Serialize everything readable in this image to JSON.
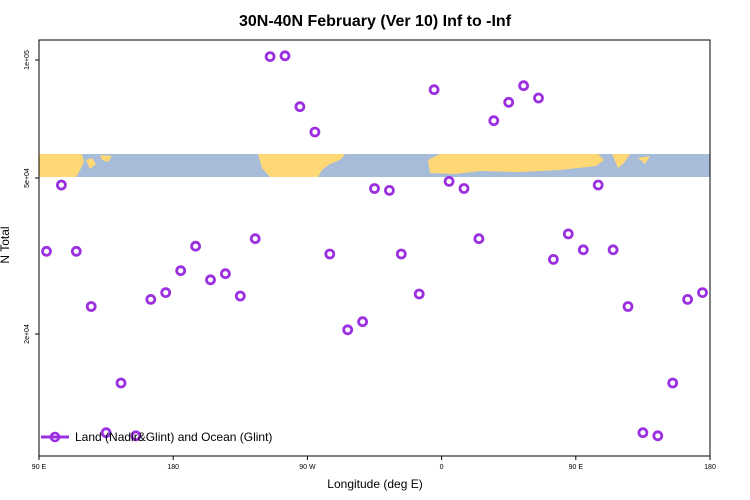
{
  "chart_data": {
    "type": "scatter",
    "title": "30N-40N February (Ver 10)   Inf to -Inf",
    "xlabel": "Longitude (deg E)",
    "ylabel": "N Total",
    "x_ticks": [
      {
        "value": 90,
        "label": "90 E"
      },
      {
        "value": 180,
        "label": "180"
      },
      {
        "value": 270,
        "label": "90 W"
      },
      {
        "value": 360,
        "label": "0"
      },
      {
        "value": 450,
        "label": "90 E"
      },
      {
        "value": 540,
        "label": "180"
      }
    ],
    "xlim": [
      90,
      540
    ],
    "y_scale": "log",
    "ylim": [
      10000,
      110000
    ],
    "y_ticks": [
      {
        "value": 20000,
        "label": "2e+04"
      },
      {
        "value": 50000,
        "label": "5e+04"
      },
      {
        "value": 100000,
        "label": "1e+05"
      }
    ],
    "grid": false,
    "legend_position": "bottom-left",
    "map_strip": {
      "colors": {
        "ocean": "#a7bcd9",
        "land": "#ffd876"
      }
    },
    "series": [
      {
        "name": "Land (Nadir&Glint) and Ocean (Glint)",
        "color": "#9b30e0",
        "marker": "hollow-circle",
        "points": [
          [
            95,
            32500
          ],
          [
            105,
            48000
          ],
          [
            115,
            32500
          ],
          [
            125,
            23500
          ],
          [
            135,
            11200
          ],
          [
            145,
            15000
          ],
          [
            155,
            11000
          ],
          [
            165,
            24500
          ],
          [
            175,
            25500
          ],
          [
            185,
            29000
          ],
          [
            195,
            33500
          ],
          [
            205,
            27500
          ],
          [
            215,
            28500
          ],
          [
            225,
            25000
          ],
          [
            235,
            35000
          ],
          [
            245,
            102000
          ],
          [
            255,
            102500
          ],
          [
            265,
            76000
          ],
          [
            275,
            65500
          ],
          [
            285,
            32000
          ],
          [
            297,
            20500
          ],
          [
            307,
            21500
          ],
          [
            315,
            47000
          ],
          [
            325,
            46500
          ],
          [
            333,
            32000
          ],
          [
            345,
            25300
          ],
          [
            355,
            84000
          ],
          [
            365,
            49000
          ],
          [
            375,
            47000
          ],
          [
            385,
            35000
          ],
          [
            395,
            70000
          ],
          [
            405,
            78000
          ],
          [
            415,
            86000
          ],
          [
            425,
            80000
          ],
          [
            435,
            31000
          ],
          [
            445,
            36000
          ],
          [
            455,
            32800
          ],
          [
            465,
            48000
          ],
          [
            475,
            32800
          ],
          [
            485,
            23500
          ],
          [
            495,
            11200
          ],
          [
            505,
            11000
          ],
          [
            515,
            15000
          ],
          [
            525,
            24500
          ],
          [
            535,
            25500
          ]
        ]
      }
    ]
  }
}
